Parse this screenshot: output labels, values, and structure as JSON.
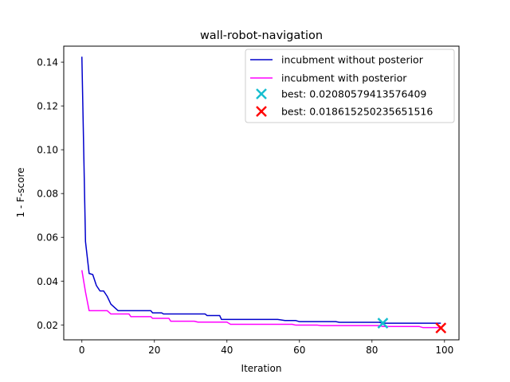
{
  "chart_data": {
    "type": "line",
    "title": "wall-robot-navigation",
    "xlabel": "Iteration",
    "ylabel": "1 - F-score",
    "xlim": [
      -5,
      104
    ],
    "ylim": [
      0.0132,
      0.1473
    ],
    "xticks": [
      0,
      20,
      40,
      60,
      80,
      100
    ],
    "yticks": [
      0.02,
      0.04,
      0.06,
      0.08,
      0.1,
      0.12,
      0.14
    ],
    "ytick_labels": [
      "0.02",
      "0.04",
      "0.06",
      "0.08",
      "0.10",
      "0.12",
      "0.14"
    ],
    "legend_position": "top-right",
    "series": [
      {
        "name": "incubment without posterior",
        "color": "#0000cc",
        "points": [
          [
            0,
            0.1425
          ],
          [
            1,
            0.058
          ],
          [
            2,
            0.0435
          ],
          [
            3,
            0.043
          ],
          [
            4,
            0.038
          ],
          [
            5,
            0.0355
          ],
          [
            6,
            0.0355
          ],
          [
            7,
            0.033
          ],
          [
            8,
            0.0295
          ],
          [
            9,
            0.028
          ],
          [
            10,
            0.0265
          ],
          [
            19,
            0.0265
          ],
          [
            19.5,
            0.0255
          ],
          [
            22,
            0.0255
          ],
          [
            22.5,
            0.025
          ],
          [
            34,
            0.025
          ],
          [
            34.5,
            0.0243
          ],
          [
            38,
            0.0243
          ],
          [
            38.5,
            0.0225
          ],
          [
            54,
            0.0225
          ],
          [
            56,
            0.022
          ],
          [
            59,
            0.022
          ],
          [
            60,
            0.0215
          ],
          [
            70,
            0.0215
          ],
          [
            71,
            0.0212
          ],
          [
            82,
            0.0212
          ],
          [
            83,
            0.0208
          ],
          [
            99,
            0.0208
          ]
        ]
      },
      {
        "name": "incubment with posterior",
        "color": "#ff00ff",
        "points": [
          [
            0,
            0.045
          ],
          [
            1,
            0.035
          ],
          [
            2,
            0.0265
          ],
          [
            7,
            0.0265
          ],
          [
            8,
            0.025
          ],
          [
            13,
            0.025
          ],
          [
            13.5,
            0.0238
          ],
          [
            19,
            0.0238
          ],
          [
            19.5,
            0.023
          ],
          [
            24,
            0.023
          ],
          [
            24.5,
            0.0217
          ],
          [
            31,
            0.0217
          ],
          [
            32,
            0.0213
          ],
          [
            40,
            0.0213
          ],
          [
            41,
            0.0203
          ],
          [
            58,
            0.0203
          ],
          [
            59,
            0.0199
          ],
          [
            65,
            0.0199
          ],
          [
            66,
            0.0197
          ],
          [
            82,
            0.0197
          ],
          [
            83,
            0.0193
          ],
          [
            93,
            0.0193
          ],
          [
            94,
            0.0188
          ],
          [
            99,
            0.0188
          ]
        ]
      }
    ],
    "markers": [
      {
        "name": "best: 0.02080579413576409",
        "x": 83,
        "y": 0.02080579413576409,
        "color": "#17becf",
        "symbol": "x"
      },
      {
        "name": "best: 0.018615250235651516",
        "x": 99,
        "y": 0.018615250235651516,
        "color": "#ff0000",
        "symbol": "x"
      }
    ]
  }
}
